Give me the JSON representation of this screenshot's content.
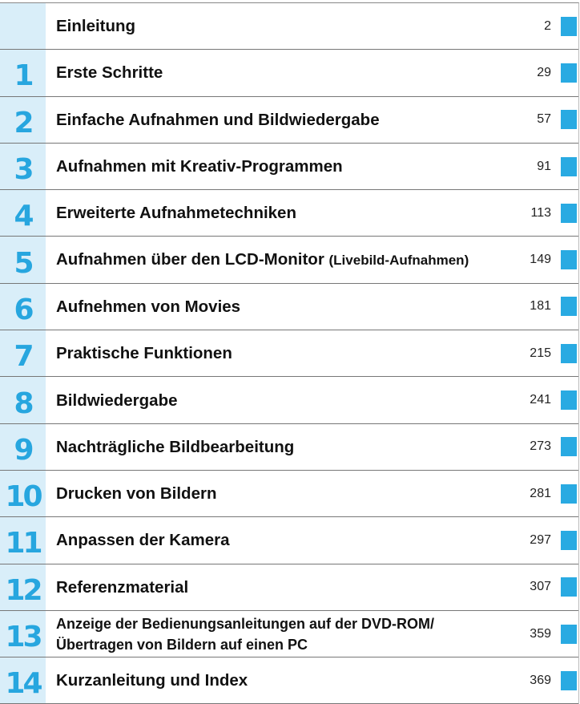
{
  "rows": [
    {
      "title": "Einleitung",
      "page": "2"
    },
    {
      "number": "1",
      "title": "Erste Schritte",
      "page": "29"
    },
    {
      "number": "2",
      "title": "Einfache Aufnahmen und Bildwiedergabe",
      "page": "57"
    },
    {
      "number": "3",
      "title": "Aufnahmen mit Kreativ-Programmen",
      "page": "91"
    },
    {
      "number": "4",
      "title": "Erweiterte Aufnahmetechniken",
      "page": "113"
    },
    {
      "number": "5",
      "title": "Aufnahmen über den LCD-Monitor",
      "title_note": "(Livebild-Aufnahmen)",
      "page": "149"
    },
    {
      "number": "6",
      "title": "Aufnehmen von Movies",
      "page": "181"
    },
    {
      "number": "7",
      "title": "Praktische Funktionen",
      "page": "215"
    },
    {
      "number": "8",
      "title": "Bildwiedergabe",
      "page": "241"
    },
    {
      "number": "9",
      "title": "Nachträgliche Bildbearbeitung",
      "page": "273"
    },
    {
      "number": "10",
      "title": "Drucken von Bildern",
      "page": "281"
    },
    {
      "number": "11",
      "title": "Anpassen der Kamera",
      "page": "297"
    },
    {
      "number": "12",
      "title": "Referenzmaterial",
      "page": "307"
    },
    {
      "number": "13",
      "title_lines": [
        "Anzeige der Bedienungsanleitungen auf der DVD-ROM/",
        "Übertragen von Bildern auf einen PC"
      ],
      "page": "359"
    },
    {
      "number": "14",
      "title": "Kurzanleitung und Index",
      "page": "369"
    }
  ]
}
